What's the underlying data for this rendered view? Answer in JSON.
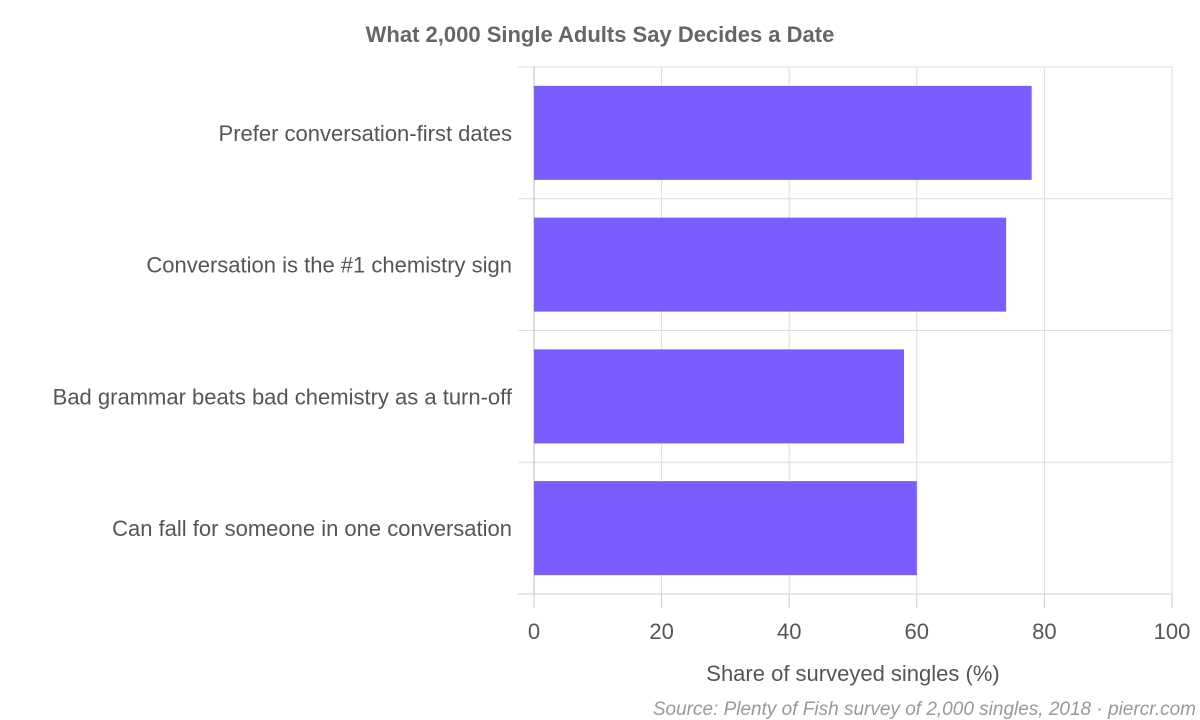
{
  "chart_data": {
    "type": "bar",
    "orientation": "horizontal",
    "title": "What 2,000 Single Adults Say Decides a Date",
    "categories": [
      "Prefer conversation-first dates",
      "Conversation is the #1 chemistry sign",
      "Bad grammar beats bad chemistry as a turn-off",
      "Can fall for someone in one conversation"
    ],
    "values": [
      78,
      74,
      58,
      60
    ],
    "xlabel": "Share of surveyed singles (%)",
    "ylabel": "",
    "xlim": [
      0,
      100
    ],
    "x_ticks": [
      "0",
      "20",
      "40",
      "60",
      "80",
      "100"
    ],
    "grid": true,
    "legend": "none",
    "bar_color": "#7b5cff",
    "source": "Source: Plenty of Fish survey of 2,000 singles, 2018 · piercr.com"
  }
}
